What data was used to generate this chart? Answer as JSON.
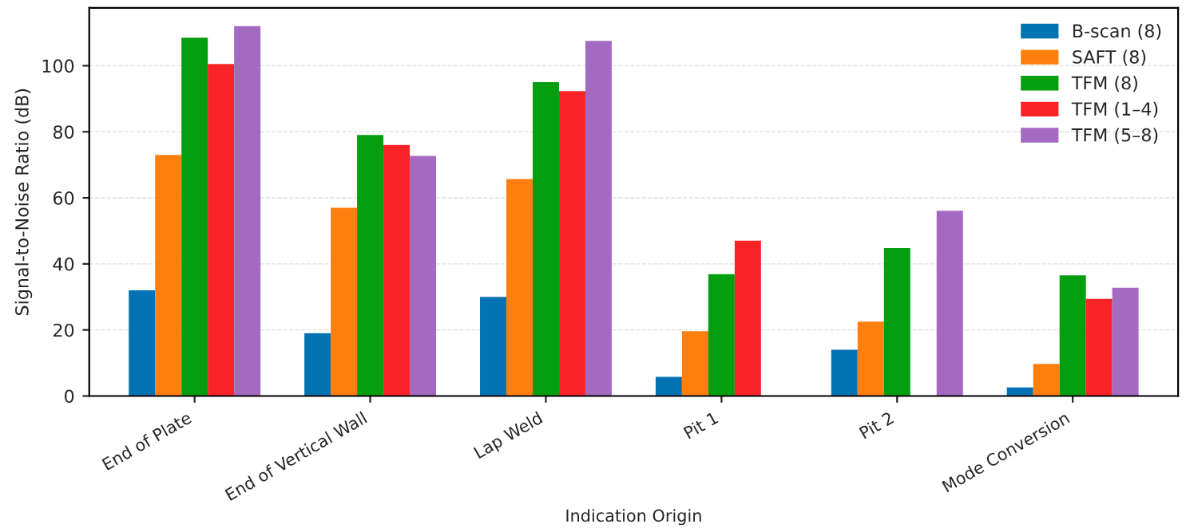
{
  "chart_data": {
    "type": "bar",
    "xlabel": "Indication Origin",
    "ylabel": "Signal-to-Noise Ratio (dB)",
    "categories": [
      "End of Plate",
      "End of Vertical Wall",
      "Lap Weld",
      "Pit 1",
      "Pit 2",
      "Mode Conversion"
    ],
    "series": [
      {
        "name": "B-scan (8)",
        "color": "#0173b2",
        "values": [
          32,
          19,
          30,
          5.8,
          14,
          2.6
        ]
      },
      {
        "name": "SAFT (8)",
        "color": "#ff7f0e",
        "values": [
          73,
          57,
          65.7,
          19.6,
          22.5,
          9.7
        ]
      },
      {
        "name": "TFM (8)",
        "color": "#029e0f",
        "values": [
          108.5,
          79,
          95,
          36.9,
          44.8,
          36.5
        ]
      },
      {
        "name": "TFM (1–4)",
        "color": "#f82428",
        "values": [
          100.5,
          76,
          92.3,
          47,
          null,
          29.4
        ]
      },
      {
        "name": "TFM (5–8)",
        "color": "#a469c0",
        "values": [
          112,
          72.7,
          107.5,
          null,
          56.1,
          32.8
        ]
      }
    ],
    "ylim": [
      0,
      117.5
    ],
    "yticks": [
      0,
      20,
      40,
      60,
      80,
      100
    ],
    "grid": "y",
    "legend": "top right"
  }
}
